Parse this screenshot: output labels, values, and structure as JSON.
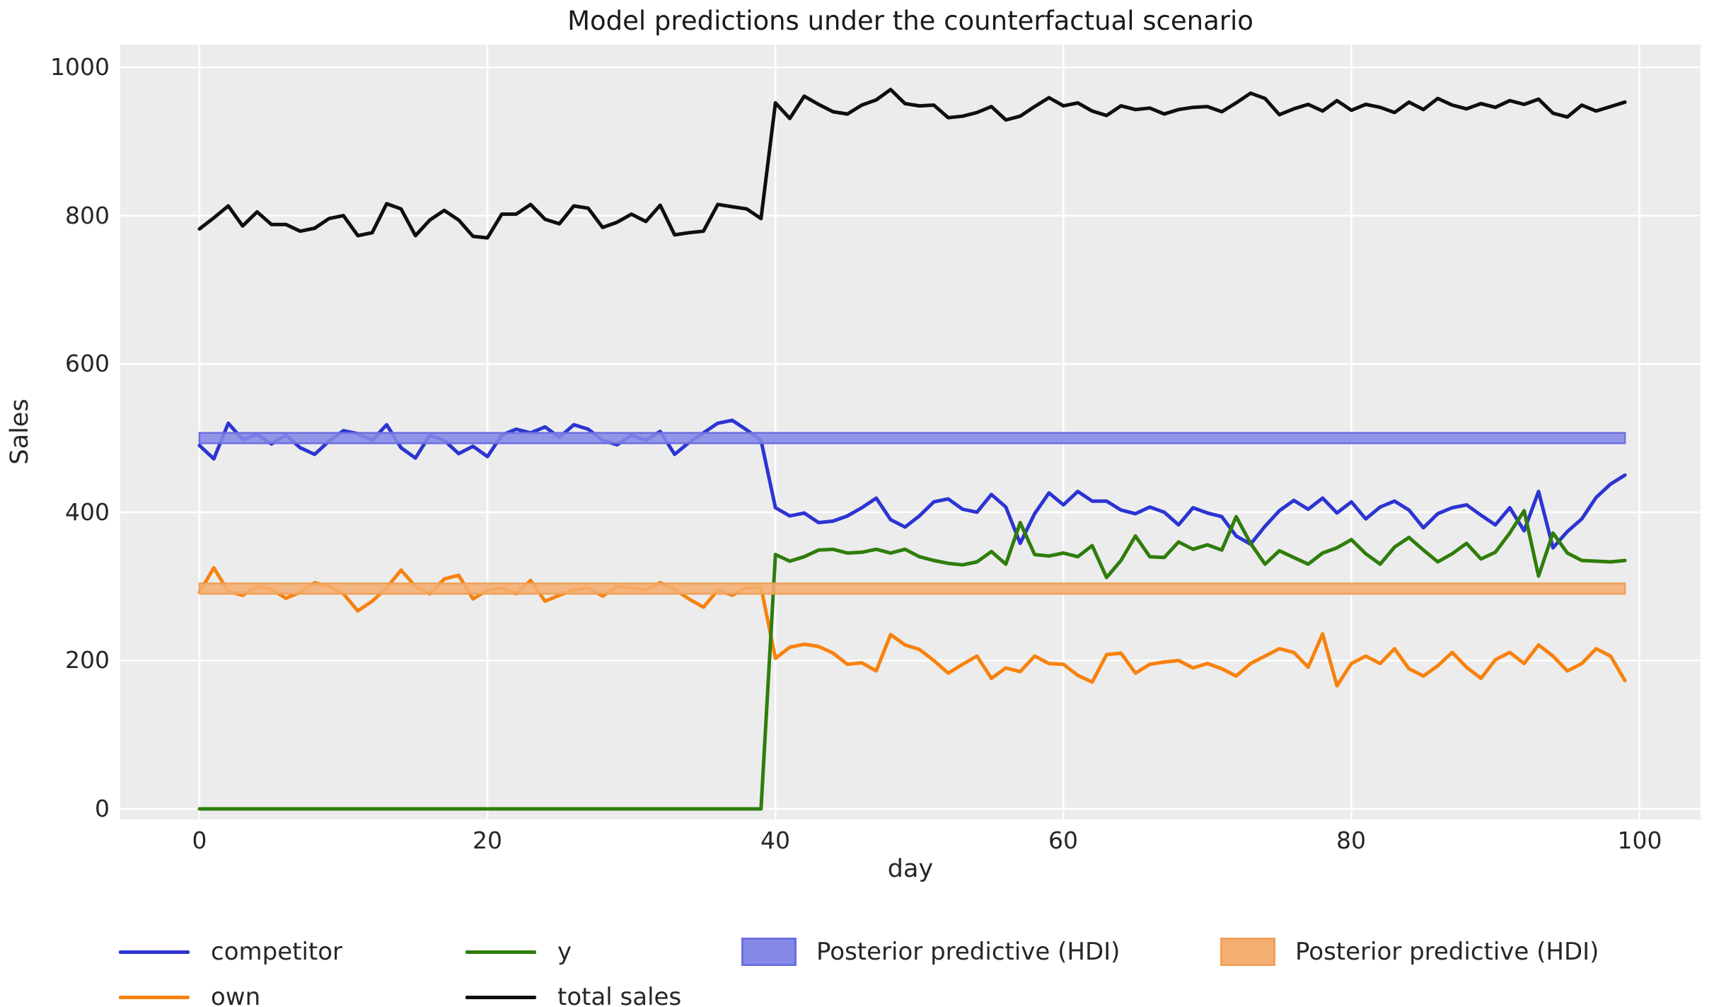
{
  "title": "Model predictions under the counterfactual scenario",
  "axes": {
    "xlabel": "day",
    "ylabel": "Sales",
    "xticks": [
      "0",
      "20",
      "40",
      "60",
      "80",
      "100"
    ],
    "yticks": [
      "0",
      "200",
      "400",
      "600",
      "800",
      "1000"
    ]
  },
  "legend": {
    "items": [
      {
        "label": "competitor",
        "type": "line",
        "color": "#2c34d2"
      },
      {
        "label": "own",
        "type": "line",
        "color": "#f8820e"
      },
      {
        "label": "y",
        "type": "line",
        "color": "#2f7d0b"
      },
      {
        "label": "total sales",
        "type": "line",
        "color": "#0f0f0f"
      },
      {
        "label": "Posterior predictive (HDI)",
        "type": "patch",
        "color": "#8589e6",
        "edge": "#6a6fdf"
      },
      {
        "label": "Posterior predictive (HDI)",
        "type": "patch",
        "color": "#f5ae71",
        "edge": "#efa057"
      }
    ]
  },
  "chart_data": {
    "type": "line",
    "title": "Model predictions under the counterfactual scenario",
    "xlabel": "day",
    "ylabel": "Sales",
    "xlim": [
      -5.5,
      104.25
    ],
    "ylim": [
      -14.3,
      1030.6
    ],
    "xtick_values": [
      0,
      20,
      40,
      60,
      80,
      100
    ],
    "ytick_values": [
      0,
      200,
      400,
      600,
      800,
      1000
    ],
    "grid": true,
    "grid_color": "#ffffff",
    "background": "#ececec",
    "legend_position": "below",
    "x_start": 0,
    "x_step": 1,
    "intervention_day": 40,
    "series": [
      {
        "name": "competitor",
        "color": "#2c34d2",
        "values": [
          490,
          472,
          520,
          498,
          505,
          492,
          504,
          487,
          478,
          496,
          510,
          506,
          497,
          518,
          487,
          473,
          504,
          497,
          479,
          489,
          475,
          504,
          512,
          507,
          515,
          501,
          518,
          512,
          497,
          491,
          504,
          497,
          509,
          478,
          494,
          507,
          520,
          524,
          511,
          497,
          406,
          395,
          399,
          386,
          388,
          395,
          406,
          419,
          390,
          380,
          395,
          414,
          418,
          404,
          400,
          424,
          407,
          358,
          398,
          426,
          410,
          428,
          415,
          415,
          403,
          398,
          407,
          400,
          383,
          406,
          399,
          394,
          368,
          357,
          381,
          402,
          416,
          404,
          419,
          399,
          414,
          391,
          407,
          415,
          403,
          379,
          398,
          406,
          410,
          396,
          383,
          406,
          375,
          428,
          352,
          374,
          391,
          420,
          438,
          450
        ]
      },
      {
        "name": "own",
        "color": "#f8820e",
        "values": [
          292,
          325,
          293,
          288,
          300,
          296,
          284,
          292,
          305,
          300,
          290,
          267,
          280,
          298,
          322,
          300,
          290,
          310,
          315,
          283,
          295,
          298,
          290,
          308,
          280,
          288,
          295,
          298,
          287,
          300,
          298,
          295,
          305,
          296,
          283,
          272,
          295,
          288,
          298,
          299,
          203,
          218,
          222,
          219,
          210,
          195,
          197,
          186,
          235,
          221,
          215,
          200,
          183,
          195,
          206,
          176,
          190,
          185,
          206,
          196,
          195,
          180,
          171,
          208,
          210,
          183,
          195,
          198,
          200,
          190,
          196,
          189,
          179,
          196,
          206,
          216,
          211,
          191,
          236,
          166,
          196,
          206,
          196,
          216,
          189,
          179,
          193,
          211,
          191,
          176,
          201,
          211,
          196,
          221,
          206,
          186,
          196,
          216,
          206,
          173
        ]
      },
      {
        "name": "y",
        "color": "#2f7d0b",
        "values": [
          0,
          0,
          0,
          0,
          0,
          0,
          0,
          0,
          0,
          0,
          0,
          0,
          0,
          0,
          0,
          0,
          0,
          0,
          0,
          0,
          0,
          0,
          0,
          0,
          0,
          0,
          0,
          0,
          0,
          0,
          0,
          0,
          0,
          0,
          0,
          0,
          0,
          0,
          0,
          0,
          343,
          334,
          340,
          349,
          350,
          345,
          346,
          350,
          345,
          350,
          340,
          335,
          331,
          329,
          333,
          347,
          330,
          386,
          343,
          341,
          345,
          340,
          355,
          312,
          335,
          368,
          340,
          339,
          360,
          350,
          356,
          349,
          394,
          358,
          330,
          348,
          339,
          330,
          345,
          352,
          363,
          344,
          330,
          353,
          366,
          349,
          333,
          344,
          358,
          337,
          346,
          372,
          402,
          314,
          372,
          345,
          335,
          334,
          333,
          335
        ]
      },
      {
        "name": "total sales",
        "color": "#0f0f0f",
        "values": [
          782,
          797,
          813,
          786,
          805,
          788,
          788,
          779,
          783,
          796,
          800,
          773,
          777,
          816,
          809,
          773,
          794,
          807,
          794,
          772,
          770,
          802,
          802,
          815,
          795,
          789,
          813,
          810,
          784,
          791,
          802,
          792,
          814,
          774,
          777,
          779,
          815,
          812,
          809,
          796,
          952,
          931,
          961,
          950,
          940,
          937,
          949,
          956,
          970,
          951,
          948,
          949,
          932,
          934,
          939,
          947,
          929,
          934,
          947,
          959,
          948,
          952,
          941,
          935,
          948,
          943,
          945,
          937,
          943,
          946,
          947,
          940,
          952,
          965,
          958,
          936,
          944,
          950,
          941,
          955,
          942,
          950,
          946,
          939,
          953,
          943,
          958,
          949,
          944,
          951,
          946,
          955,
          950,
          957,
          938,
          933,
          949,
          941,
          947,
          953
        ]
      }
    ],
    "hdi_bands": [
      {
        "name": "Posterior predictive (HDI)",
        "x_range": [
          0,
          99
        ],
        "low": 493,
        "high": 507,
        "fill": "#8589e6",
        "edge": "#6a6fdf",
        "opacity": 0.88
      },
      {
        "name": "Posterior predictive (HDI)",
        "x_range": [
          0,
          99
        ],
        "low": 290,
        "high": 304,
        "fill": "#f5ae71",
        "edge": "#efa057",
        "opacity": 0.88
      }
    ]
  }
}
